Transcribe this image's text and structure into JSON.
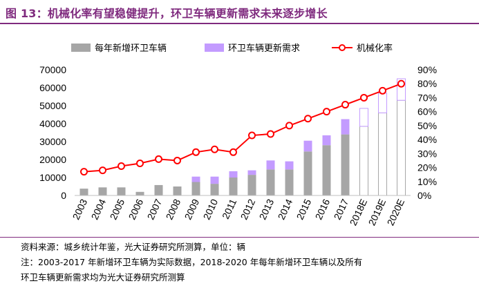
{
  "header": {
    "title": "图 13：机械化率有望稳健提升，环卫车辆更新需求未来逐步增长"
  },
  "colors": {
    "title": "#7f2a7e",
    "new_bar": "#a6a6a6",
    "update_bar": "#c39bff",
    "line": "#ff0000",
    "marker_fill": "#ffffff"
  },
  "chart_data": {
    "type": "bar",
    "categories": [
      "2003",
      "2004",
      "2005",
      "2006",
      "2007",
      "2008",
      "2009",
      "2010",
      "2011",
      "2012",
      "2013",
      "2014",
      "2015",
      "2016",
      "2017",
      "2018E",
      "2019E",
      "2020E"
    ],
    "series": [
      {
        "name": "每年新增环卫车辆",
        "type": "bar",
        "axis": "left",
        "values": [
          3800,
          4500,
          4500,
          2000,
          5800,
          5000,
          7500,
          6500,
          10000,
          11500,
          14500,
          14500,
          24500,
          28000,
          34000,
          38500,
          46000,
          53000
        ]
      },
      {
        "name": "环卫车辆更新需求",
        "type": "bar",
        "axis": "left",
        "stacked": true,
        "values": [
          0,
          0,
          0,
          0,
          0,
          0,
          3000,
          4000,
          3500,
          2500,
          5000,
          4500,
          6000,
          5500,
          8500,
          10000,
          11000,
          12000
        ]
      },
      {
        "name": "机械化率",
        "type": "line",
        "axis": "right",
        "values": [
          0.17,
          0.18,
          0.21,
          0.23,
          0.26,
          0.25,
          0.31,
          0.33,
          0.31,
          0.43,
          0.44,
          0.5,
          0.55,
          0.6,
          0.65,
          0.7,
          0.75,
          0.8
        ]
      }
    ],
    "left_axis": {
      "ylim": [
        0,
        70000
      ],
      "ticks": [
        "0",
        "10000",
        "20000",
        "30000",
        "40000",
        "50000",
        "60000",
        "70000"
      ]
    },
    "right_axis": {
      "ylim": [
        0,
        0.9
      ],
      "ticks": [
        "0%",
        "10%",
        "20%",
        "30%",
        "40%",
        "50%",
        "60%",
        "70%",
        "80%",
        "90%"
      ]
    },
    "forecast_categories": [
      "2018E",
      "2019E",
      "2020E"
    ],
    "legend": {
      "position": "top",
      "items": [
        "每年新增环卫车辆",
        "环卫车辆更新需求",
        "机械化率"
      ]
    }
  },
  "notes": {
    "source": "资料来源：城乡统计年鉴，光大证券研究所测算，单位：辆",
    "note_line1": "注：2003-2017 年新增环卫车辆为实际数据，2018-2020 年每年新增环卫车辆以及所有",
    "note_line2": "环卫车辆更新需求均为光大证券研究所测算"
  }
}
